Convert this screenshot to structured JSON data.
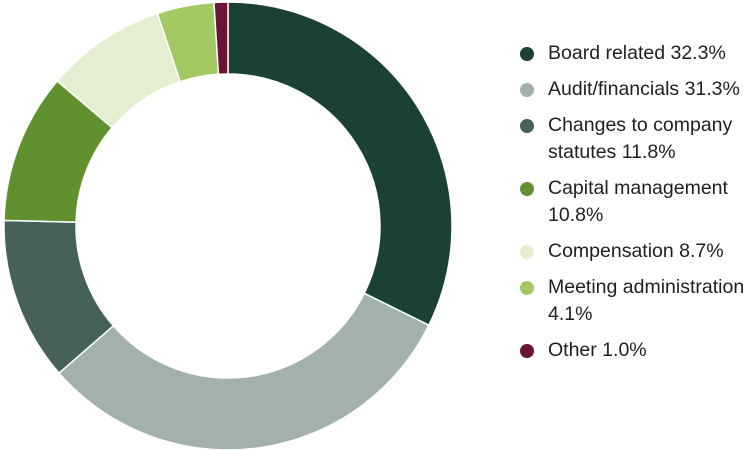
{
  "chart_data": {
    "type": "pie",
    "donut": true,
    "title": "",
    "legend_position": "right",
    "slices": [
      {
        "label": "Board related",
        "value": 32.3,
        "display": "Board related 32.3%",
        "color": "#1b4035"
      },
      {
        "label": "Audit/financials",
        "value": 31.3,
        "display": "Audit/financials 31.3%",
        "color": "#a3b1ab"
      },
      {
        "label": "Changes to company statutes",
        "value": 11.8,
        "display": "Changes to company statutes 11.8%",
        "color": "#456159"
      },
      {
        "label": "Capital management",
        "value": 10.8,
        "display": "Capital management 10.8%",
        "color": "#61902e"
      },
      {
        "label": "Compensation",
        "value": 8.7,
        "display": "Compensation 8.7%",
        "color": "#e3efd0"
      },
      {
        "label": "Meeting administration",
        "value": 4.1,
        "display": "Meeting administration 4.1%",
        "color": "#a3c963"
      },
      {
        "label": "Other",
        "value": 1.0,
        "display": "Other 1.0%",
        "color": "#6b1538"
      }
    ]
  }
}
